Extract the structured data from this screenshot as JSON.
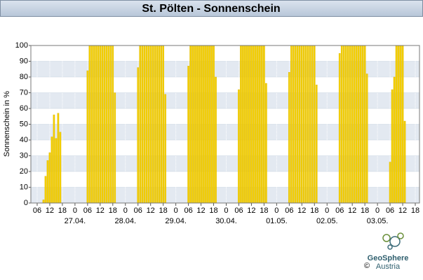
{
  "chart_data": {
    "type": "bar",
    "title": "St. Pölten - Sonnenschein",
    "y_label": "Sonnenschein in %",
    "x": [
      9,
      10,
      11,
      12,
      13,
      14,
      15,
      16,
      17,
      30,
      31,
      32,
      33,
      34,
      35,
      36,
      37,
      38,
      39,
      40,
      41,
      42,
      43,
      54,
      55,
      56,
      57,
      58,
      59,
      60,
      61,
      62,
      63,
      64,
      65,
      66,
      67,
      78,
      79,
      80,
      81,
      82,
      83,
      84,
      85,
      86,
      87,
      88,
      89,
      90,
      91,
      102,
      103,
      104,
      105,
      106,
      107,
      108,
      109,
      110,
      111,
      112,
      113,
      114,
      115,
      126,
      127,
      128,
      129,
      130,
      131,
      132,
      133,
      134,
      135,
      136,
      137,
      138,
      139,
      150,
      151,
      152,
      153,
      154,
      155,
      156,
      157,
      158,
      159,
      160,
      161,
      162,
      163,
      174,
      175,
      176,
      177,
      178,
      179,
      180,
      181
    ],
    "values": [
      2,
      17,
      27,
      32,
      42,
      56,
      41,
      57,
      45,
      84,
      100,
      100,
      100,
      100,
      100,
      100,
      100,
      100,
      100,
      100,
      100,
      100,
      70,
      86,
      100,
      100,
      100,
      100,
      100,
      100,
      100,
      100,
      100,
      100,
      100,
      100,
      69,
      87,
      100,
      100,
      100,
      100,
      100,
      100,
      100,
      100,
      100,
      100,
      100,
      100,
      80,
      72,
      100,
      100,
      100,
      100,
      100,
      100,
      100,
      100,
      100,
      100,
      100,
      100,
      76,
      83,
      100,
      100,
      100,
      100,
      100,
      100,
      100,
      100,
      100,
      100,
      100,
      100,
      75,
      95,
      100,
      100,
      100,
      100,
      100,
      100,
      100,
      100,
      100,
      100,
      100,
      100,
      82,
      26,
      72,
      80,
      100,
      100,
      100,
      100,
      52
    ],
    "color": "#f5d000",
    "xlim": [
      3,
      188
    ],
    "ylim": [
      0,
      100
    ],
    "yticks": [
      0,
      10,
      20,
      30,
      40,
      50,
      60,
      70,
      80,
      90,
      100
    ],
    "xticks": [
      {
        "value": 6,
        "label": "06"
      },
      {
        "value": 12,
        "label": "12"
      },
      {
        "value": 18,
        "label": "18"
      },
      {
        "value": 24,
        "label": "0"
      },
      {
        "value": 30,
        "label": "06"
      },
      {
        "value": 36,
        "label": "12"
      },
      {
        "value": 42,
        "label": "18"
      },
      {
        "value": 48,
        "label": "0"
      },
      {
        "value": 54,
        "label": "06"
      },
      {
        "value": 60,
        "label": "12"
      },
      {
        "value": 66,
        "label": "18"
      },
      {
        "value": 72,
        "label": "0"
      },
      {
        "value": 78,
        "label": "06"
      },
      {
        "value": 84,
        "label": "12"
      },
      {
        "value": 90,
        "label": "18"
      },
      {
        "value": 96,
        "label": "0"
      },
      {
        "value": 102,
        "label": "06"
      },
      {
        "value": 108,
        "label": "12"
      },
      {
        "value": 114,
        "label": "18"
      },
      {
        "value": 120,
        "label": "0"
      },
      {
        "value": 126,
        "label": "06"
      },
      {
        "value": 132,
        "label": "12"
      },
      {
        "value": 138,
        "label": "18"
      },
      {
        "value": 144,
        "label": "0"
      },
      {
        "value": 150,
        "label": "06"
      },
      {
        "value": 156,
        "label": "12"
      },
      {
        "value": 162,
        "label": "18"
      },
      {
        "value": 168,
        "label": "0"
      },
      {
        "value": 174,
        "label": "06"
      },
      {
        "value": 180,
        "label": "12"
      },
      {
        "value": 186,
        "label": "18"
      }
    ],
    "date_labels": [
      {
        "value": 24,
        "label": "27.04."
      },
      {
        "value": 48,
        "label": "28.04."
      },
      {
        "value": 72,
        "label": "29.04."
      },
      {
        "value": 96,
        "label": "30.04."
      },
      {
        "value": 120,
        "label": "01.05."
      },
      {
        "value": 144,
        "label": "02.05."
      },
      {
        "value": 168,
        "label": "03.05."
      }
    ],
    "grid": true,
    "logo": {
      "name": "GeoSphere",
      "sub": "Austria",
      "copyright": "©"
    }
  }
}
